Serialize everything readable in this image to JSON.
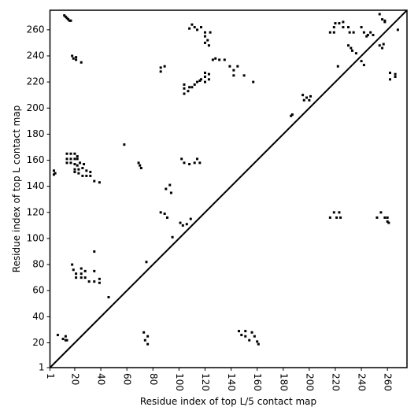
{
  "chart_data": {
    "type": "scatter",
    "x_label": "Residue index of top L/5 contact map",
    "y_label": "Residue index of top L contact map",
    "xlim": [
      1,
      275
    ],
    "ylim": [
      1,
      275
    ],
    "xticks": [
      1,
      20,
      40,
      60,
      80,
      100,
      120,
      140,
      160,
      180,
      200,
      220,
      240,
      260
    ],
    "yticks": [
      1,
      20,
      40,
      60,
      80,
      100,
      120,
      140,
      160,
      180,
      200,
      220,
      240,
      260
    ],
    "diagonal": true,
    "color": "#000000",
    "x": [
      12,
      13,
      14,
      15,
      16,
      17,
      18,
      19,
      21,
      21,
      25,
      4,
      5,
      4,
      14,
      17,
      20,
      22,
      14,
      17,
      20,
      22,
      14,
      17,
      20,
      22,
      24,
      27,
      20,
      23,
      26,
      29,
      20,
      23,
      26,
      29,
      32,
      32,
      35,
      39,
      58,
      69,
      70,
      71,
      86,
      86,
      89,
      90,
      93,
      94,
      104,
      104,
      104,
      107,
      108,
      110,
      112,
      114,
      116,
      117,
      120,
      120,
      120,
      123,
      123,
      108,
      110,
      112,
      114,
      117,
      120,
      120,
      122,
      120,
      123,
      124,
      126,
      128,
      131,
      135,
      139,
      142,
      142,
      145,
      150,
      157,
      102,
      104,
      108,
      112,
      114,
      116,
      86,
      89,
      91,
      101,
      103,
      106,
      109,
      95,
      75,
      18,
      19,
      21,
      21,
      25,
      25,
      25,
      28,
      28,
      31,
      35,
      35,
      39,
      39,
      35,
      46,
      7,
      11,
      13,
      13,
      14,
      73,
      74,
      76,
      76,
      146,
      148,
      151,
      151,
      154,
      156,
      158,
      160,
      161,
      186,
      187,
      195,
      196,
      198,
      200,
      201,
      216,
      219,
      220,
      223,
      226,
      226,
      230,
      231,
      234,
      219,
      222,
      230,
      232,
      233,
      236,
      240,
      242,
      240,
      242,
      245,
      247,
      249,
      244,
      254,
      256,
      258,
      258,
      254,
      256,
      257,
      262,
      262,
      266,
      266,
      268,
      216,
      219,
      221,
      223,
      224,
      252,
      255,
      258,
      260,
      260,
      261
    ],
    "y": [
      271,
      270,
      269,
      268,
      267,
      267,
      240,
      238,
      239,
      237,
      235,
      152,
      150,
      149,
      165,
      165,
      165,
      163,
      161,
      161,
      161,
      161,
      158,
      158,
      157,
      156,
      158,
      157,
      153,
      153,
      154,
      152,
      151,
      150,
      148,
      148,
      148,
      151,
      144,
      143,
      172,
      158,
      156,
      154,
      228,
      231,
      232,
      138,
      141,
      135,
      211,
      215,
      218,
      213,
      216,
      216,
      218,
      220,
      221,
      222,
      220,
      224,
      227,
      222,
      226,
      261,
      264,
      262,
      260,
      262,
      258,
      255,
      252,
      250,
      248,
      258,
      237,
      238,
      237,
      237,
      232,
      229,
      225,
      232,
      225,
      220,
      161,
      158,
      157,
      158,
      161,
      158,
      120,
      119,
      116,
      112,
      110,
      111,
      115,
      101,
      82,
      80,
      76,
      73,
      70,
      77,
      73,
      70,
      75,
      70,
      67,
      67,
      75,
      69,
      66,
      90,
      55,
      26,
      23,
      22,
      25,
      22,
      28,
      22,
      25,
      19,
      29,
      26,
      25,
      29,
      22,
      28,
      25,
      21,
      19,
      194,
      195,
      210,
      206,
      208,
      206,
      209,
      258,
      262,
      265,
      265,
      266,
      262,
      262,
      258,
      258,
      258,
      232,
      248,
      246,
      244,
      242,
      236,
      233,
      262,
      258,
      256,
      258,
      256,
      255,
      272,
      268,
      267,
      266,
      248,
      246,
      249,
      227,
      222,
      226,
      224,
      260,
      116,
      120,
      116,
      120,
      116,
      116,
      120,
      116,
      116,
      113,
      112
    ]
  }
}
